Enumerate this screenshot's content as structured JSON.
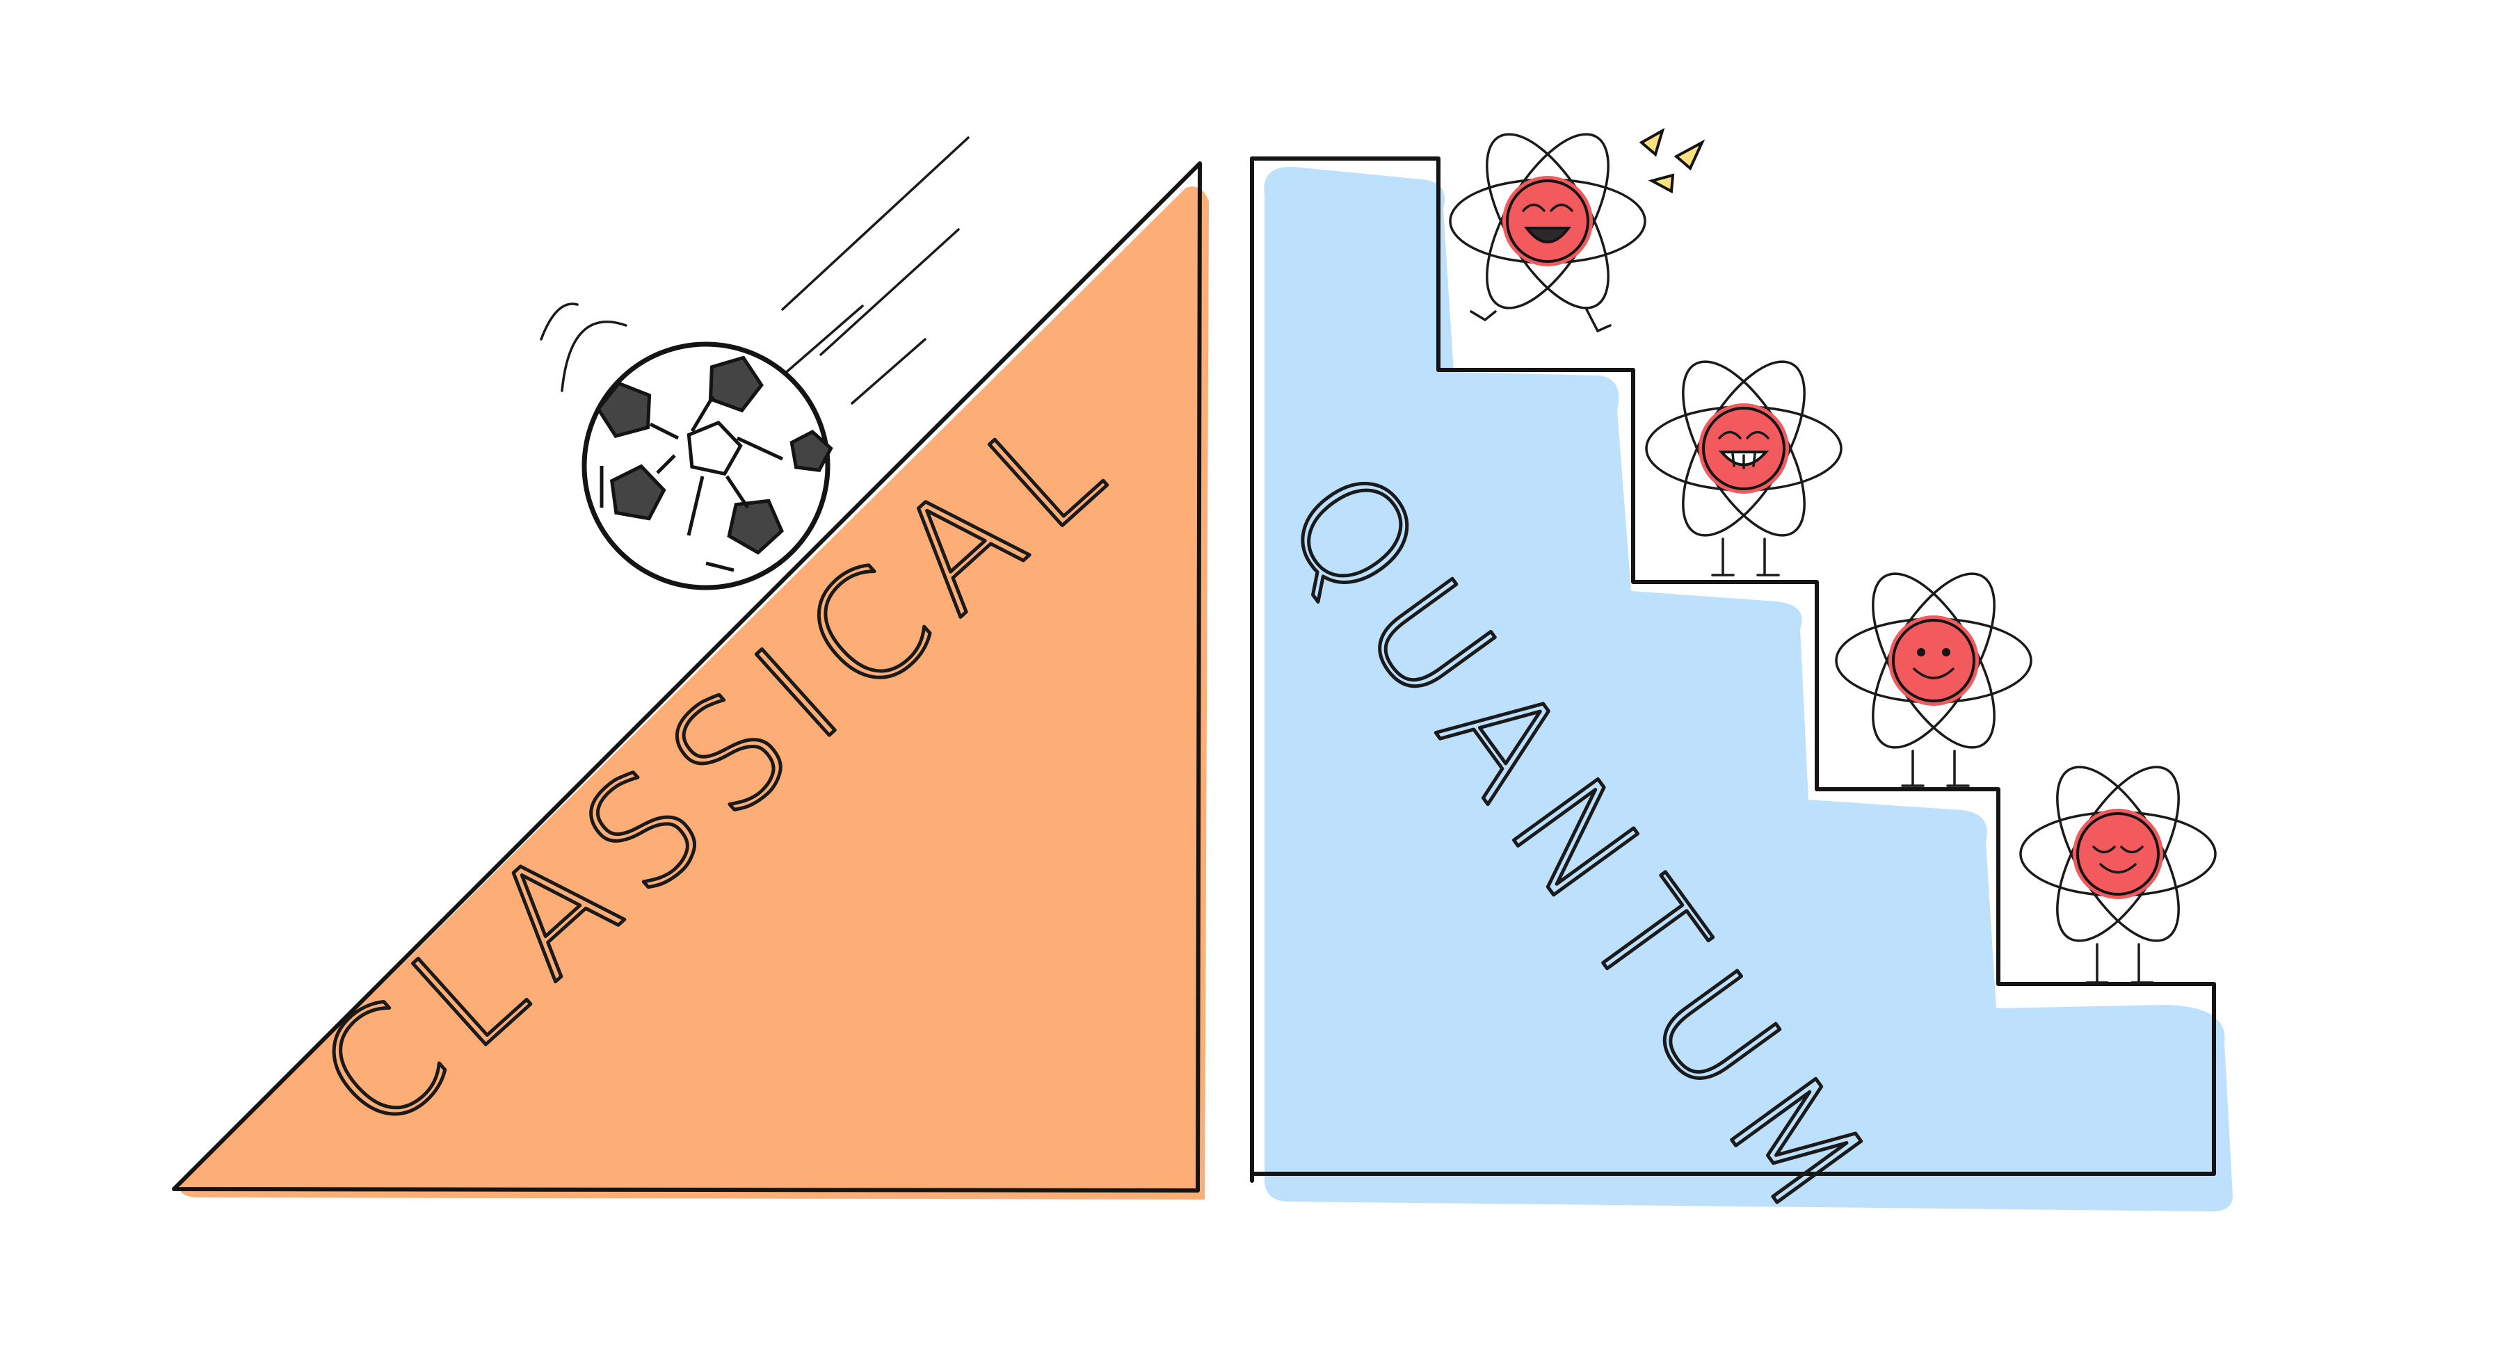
{
  "labels": {
    "classical": "CLASSICAL",
    "quantum": "QUANTUM"
  },
  "colors": {
    "classical_fill": "#fcae76",
    "quantum_fill": "#bde0fd",
    "outline": "#141414",
    "nucleus": "#f25a5e",
    "sparkle": "#fce27f",
    "ball_patch": "#444444"
  },
  "icons": [
    "soccer-ball-icon",
    "atom-character-icon",
    "sparkle-icon"
  ]
}
